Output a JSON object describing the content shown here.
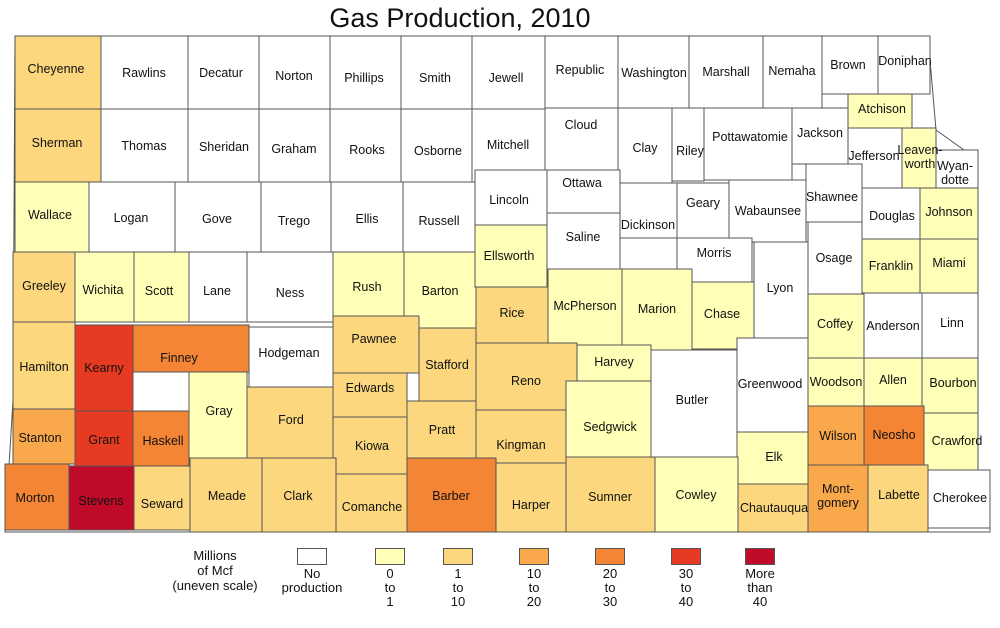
{
  "title": "Gas Production, 2010",
  "colors": {
    "none": "#ffffff",
    "c0_1": "#ffffb8",
    "c1_10": "#fcd77e",
    "c10_20": "#f9a94b",
    "c20_30": "#f48535",
    "c30_40": "#e63a22",
    "c40plus": "#c00a2a"
  },
  "legend": {
    "title": "Millions\nof Mcf\n(uneven scale)",
    "items": [
      {
        "key": "none",
        "label": "No\nproduction"
      },
      {
        "key": "c0_1",
        "label": "0\nto\n1"
      },
      {
        "key": "c1_10",
        "label": "1\nto\n10"
      },
      {
        "key": "c10_20",
        "label": "10\nto\n20"
      },
      {
        "key": "c20_30",
        "label": "20\nto\n30"
      },
      {
        "key": "c30_40",
        "label": "30\nto\n40"
      },
      {
        "key": "c40plus",
        "label": "More\nthan\n40"
      }
    ]
  },
  "counties": [
    {
      "name": "Cheyenne",
      "cls": "c1_10"
    },
    {
      "name": "Rawlins",
      "cls": "none"
    },
    {
      "name": "Decatur",
      "cls": "none"
    },
    {
      "name": "Norton",
      "cls": "none"
    },
    {
      "name": "Phillips",
      "cls": "none"
    },
    {
      "name": "Smith",
      "cls": "none"
    },
    {
      "name": "Jewell",
      "cls": "none"
    },
    {
      "name": "Republic",
      "cls": "none"
    },
    {
      "name": "Washington",
      "cls": "none"
    },
    {
      "name": "Marshall",
      "cls": "none"
    },
    {
      "name": "Nemaha",
      "cls": "none"
    },
    {
      "name": "Brown",
      "cls": "none"
    },
    {
      "name": "Doniphan",
      "cls": "none"
    },
    {
      "name": "Sherman",
      "cls": "c1_10"
    },
    {
      "name": "Thomas",
      "cls": "none"
    },
    {
      "name": "Sheridan",
      "cls": "none"
    },
    {
      "name": "Graham",
      "cls": "none"
    },
    {
      "name": "Rooks",
      "cls": "none"
    },
    {
      "name": "Osborne",
      "cls": "none"
    },
    {
      "name": "Mitchell",
      "cls": "none"
    },
    {
      "name": "Cloud",
      "cls": "none"
    },
    {
      "name": "Clay",
      "cls": "none"
    },
    {
      "name": "Riley",
      "cls": "none"
    },
    {
      "name": "Pottawatomie",
      "cls": "none"
    },
    {
      "name": "Jackson",
      "cls": "none"
    },
    {
      "name": "Atchison",
      "cls": "c0_1"
    },
    {
      "name": "Jefferson",
      "cls": "none"
    },
    {
      "name": "Leaven-\nworth",
      "cls": "c0_1"
    },
    {
      "name": "Wyan-\ndotte",
      "cls": "none"
    },
    {
      "name": "Wallace",
      "cls": "c0_1"
    },
    {
      "name": "Logan",
      "cls": "none"
    },
    {
      "name": "Gove",
      "cls": "none"
    },
    {
      "name": "Trego",
      "cls": "none"
    },
    {
      "name": "Ellis",
      "cls": "none"
    },
    {
      "name": "Russell",
      "cls": "none"
    },
    {
      "name": "Lincoln",
      "cls": "none"
    },
    {
      "name": "Ottawa",
      "cls": "none"
    },
    {
      "name": "Dickinson",
      "cls": "none"
    },
    {
      "name": "Geary",
      "cls": "none"
    },
    {
      "name": "Wabaunsee",
      "cls": "none"
    },
    {
      "name": "Shawnee",
      "cls": "none"
    },
    {
      "name": "Douglas",
      "cls": "none"
    },
    {
      "name": "Johnson",
      "cls": "c0_1"
    },
    {
      "name": "Saline",
      "cls": "none"
    },
    {
      "name": "Morris",
      "cls": "none"
    },
    {
      "name": "Greeley",
      "cls": "c1_10"
    },
    {
      "name": "Wichita",
      "cls": "c0_1"
    },
    {
      "name": "Scott",
      "cls": "c0_1"
    },
    {
      "name": "Lane",
      "cls": "none"
    },
    {
      "name": "Ness",
      "cls": "none"
    },
    {
      "name": "Rush",
      "cls": "c0_1"
    },
    {
      "name": "Barton",
      "cls": "c0_1"
    },
    {
      "name": "Ellsworth",
      "cls": "c0_1"
    },
    {
      "name": "Rice",
      "cls": "c1_10"
    },
    {
      "name": "McPherson",
      "cls": "c0_1"
    },
    {
      "name": "Marion",
      "cls": "c0_1"
    },
    {
      "name": "Chase",
      "cls": "c0_1"
    },
    {
      "name": "Lyon",
      "cls": "none"
    },
    {
      "name": "Osage",
      "cls": "none"
    },
    {
      "name": "Franklin",
      "cls": "c0_1"
    },
    {
      "name": "Miami",
      "cls": "c0_1"
    },
    {
      "name": "Hamilton",
      "cls": "c1_10"
    },
    {
      "name": "Kearny",
      "cls": "c30_40"
    },
    {
      "name": "Finney",
      "cls": "c20_30"
    },
    {
      "name": "Hodgeman",
      "cls": "none"
    },
    {
      "name": "Pawnee",
      "cls": "c1_10"
    },
    {
      "name": "Stafford",
      "cls": "c1_10"
    },
    {
      "name": "Reno",
      "cls": "c1_10"
    },
    {
      "name": "Harvey",
      "cls": "c0_1"
    },
    {
      "name": "Coffey",
      "cls": "c0_1"
    },
    {
      "name": "Anderson",
      "cls": "none"
    },
    {
      "name": "Linn",
      "cls": "none"
    },
    {
      "name": "Gray",
      "cls": "c0_1"
    },
    {
      "name": "Ford",
      "cls": "c1_10"
    },
    {
      "name": "Edwards",
      "cls": "c1_10"
    },
    {
      "name": "Butler",
      "cls": "none"
    },
    {
      "name": "Greenwood",
      "cls": "none"
    },
    {
      "name": "Woodson",
      "cls": "c0_1"
    },
    {
      "name": "Allen",
      "cls": "c0_1"
    },
    {
      "name": "Bourbon",
      "cls": "c0_1"
    },
    {
      "name": "Stanton",
      "cls": "c10_20"
    },
    {
      "name": "Grant",
      "cls": "c30_40"
    },
    {
      "name": "Haskell",
      "cls": "c20_30"
    },
    {
      "name": "Kiowa",
      "cls": "c1_10"
    },
    {
      "name": "Pratt",
      "cls": "c1_10"
    },
    {
      "name": "Kingman",
      "cls": "c1_10"
    },
    {
      "name": "Sedgwick",
      "cls": "c0_1"
    },
    {
      "name": "Wilson",
      "cls": "c10_20"
    },
    {
      "name": "Neosho",
      "cls": "c20_30"
    },
    {
      "name": "Crawford",
      "cls": "c0_1"
    },
    {
      "name": "Elk",
      "cls": "c0_1"
    },
    {
      "name": "Morton",
      "cls": "c20_30"
    },
    {
      "name": "Stevens",
      "cls": "c40plus"
    },
    {
      "name": "Seward",
      "cls": "c1_10"
    },
    {
      "name": "Meade",
      "cls": "c1_10"
    },
    {
      "name": "Clark",
      "cls": "c1_10"
    },
    {
      "name": "Comanche",
      "cls": "c1_10"
    },
    {
      "name": "Barber",
      "cls": "c20_30"
    },
    {
      "name": "Harper",
      "cls": "c1_10"
    },
    {
      "name": "Sumner",
      "cls": "c1_10"
    },
    {
      "name": "Cowley",
      "cls": "c0_1"
    },
    {
      "name": "Chautauqua",
      "cls": "c1_10"
    },
    {
      "name": "Mont-\ngomery",
      "cls": "c10_20"
    },
    {
      "name": "Labette",
      "cls": "c1_10"
    },
    {
      "name": "Cherokee",
      "cls": "none"
    }
  ]
}
